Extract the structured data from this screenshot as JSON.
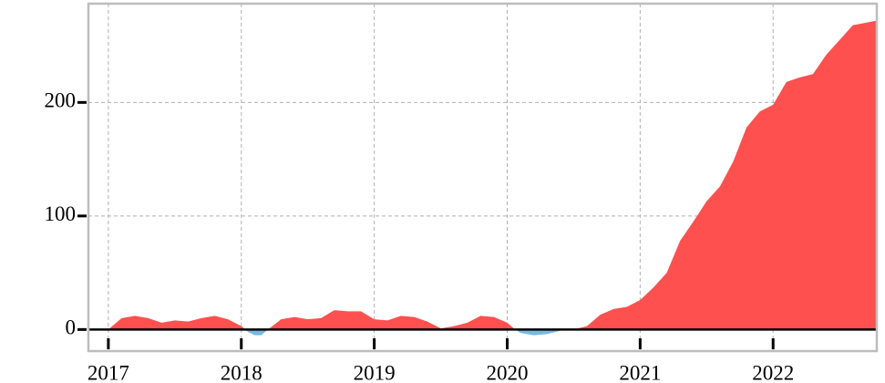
{
  "chart_data": {
    "type": "area",
    "x": [
      2017.0,
      2017.1,
      2017.2,
      2017.3,
      2017.4,
      2017.5,
      2017.6,
      2017.7,
      2017.8,
      2017.9,
      2018.0,
      2018.05,
      2018.1,
      2018.15,
      2018.2,
      2018.3,
      2018.4,
      2018.5,
      2018.6,
      2018.7,
      2018.8,
      2018.9,
      2019.0,
      2019.1,
      2019.2,
      2019.3,
      2019.4,
      2019.5,
      2019.6,
      2019.7,
      2019.8,
      2019.9,
      2020.0,
      2020.05,
      2020.1,
      2020.2,
      2020.3,
      2020.4,
      2020.5,
      2020.6,
      2020.7,
      2020.8,
      2020.9,
      2021.0,
      2021.1,
      2021.2,
      2021.3,
      2021.4,
      2021.5,
      2021.6,
      2021.7,
      2021.8,
      2021.9,
      2022.0,
      2022.1,
      2022.2,
      2022.3,
      2022.4,
      2022.5,
      2022.6,
      2022.78
    ],
    "values": [
      0,
      10,
      12,
      10,
      6,
      8,
      7,
      10,
      12,
      9,
      3,
      -2,
      -5,
      -5,
      0,
      9,
      11,
      9,
      10,
      17,
      16,
      16,
      9,
      8,
      12,
      11,
      7,
      1,
      3,
      6,
      12,
      11,
      6,
      1,
      -3,
      -5,
      -4,
      -1,
      0,
      3,
      13,
      18,
      20,
      26,
      37,
      50,
      78,
      95,
      113,
      126,
      148,
      178,
      192,
      198,
      218,
      222,
      225,
      242,
      255,
      268,
      272
    ],
    "positive_color": "#ff5050",
    "negative_color": "#7ab8e0",
    "xlim": [
      2016.85,
      2022.78
    ],
    "ylim": [
      -19,
      287
    ],
    "xticks": [
      2017,
      2018,
      2019,
      2020,
      2021,
      2022
    ],
    "yticks": [
      0,
      100,
      200
    ],
    "grid": true
  }
}
